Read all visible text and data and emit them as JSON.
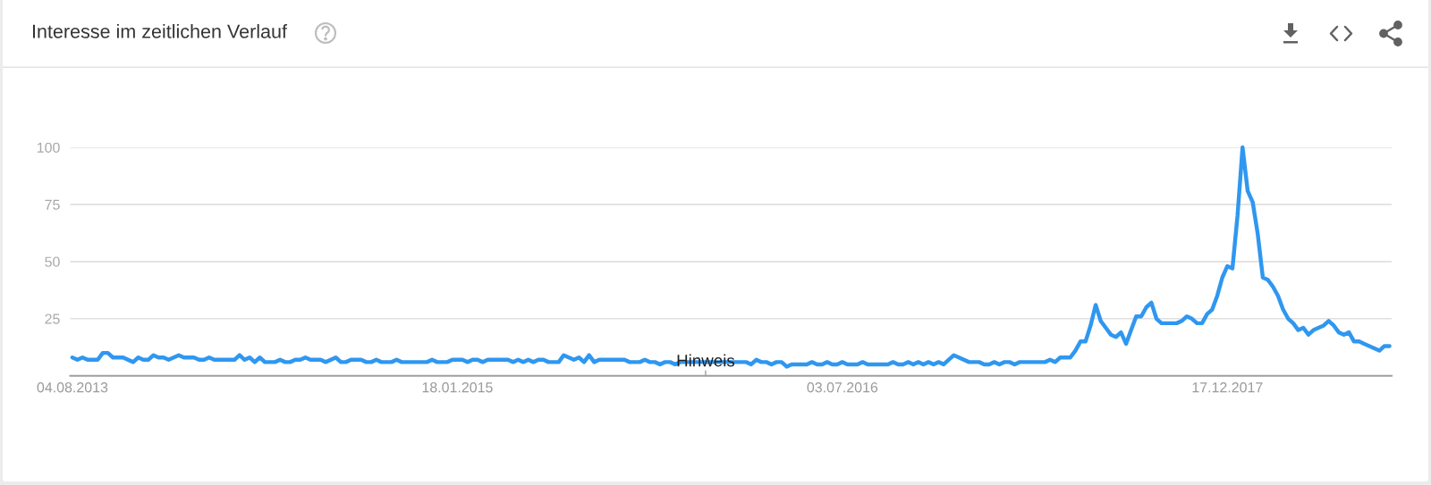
{
  "chart_data": {
    "type": "line",
    "title": "Interesse im zeitlichen Verlauf",
    "annotations": [
      {
        "text": "Hinweis",
        "x": "2015-12-27",
        "y": 6
      }
    ],
    "x": [
      "2013-08-04",
      "2013-08-11",
      "2013-08-18",
      "2013-08-25",
      "2013-09-08",
      "2013-09-15",
      "2013-09-22",
      "2013-09-29",
      "2013-10-13",
      "2013-10-27",
      "2013-11-03",
      "2013-11-10",
      "2013-11-17",
      "2013-11-24",
      "2013-12-01",
      "2013-12-08",
      "2013-12-15",
      "2013-12-29",
      "2014-01-05",
      "2014-01-19",
      "2014-01-26",
      "2014-02-02",
      "2014-02-09",
      "2014-02-16",
      "2014-03-16",
      "2014-03-23",
      "2014-03-30",
      "2014-04-06",
      "2014-04-13",
      "2014-04-20",
      "2014-04-27",
      "2014-05-11",
      "2014-05-18",
      "2014-05-25",
      "2014-06-01",
      "2014-06-08",
      "2014-06-15",
      "2014-06-22",
      "2014-06-29",
      "2014-07-13",
      "2014-07-20",
      "2014-08-03",
      "2014-08-10",
      "2014-08-17",
      "2014-08-24",
      "2014-09-07",
      "2014-09-14",
      "2014-09-21",
      "2014-09-28",
      "2014-10-05",
      "2014-10-19",
      "2014-10-26",
      "2014-11-02",
      "2014-12-07",
      "2014-12-14",
      "2014-12-21",
      "2015-01-04",
      "2015-01-11",
      "2015-01-25",
      "2015-02-01",
      "2015-02-08",
      "2015-02-15",
      "2015-02-22",
      "2015-03-01",
      "2015-03-29",
      "2015-04-05",
      "2015-04-12",
      "2015-04-19",
      "2015-04-26",
      "2015-05-03",
      "2015-05-10",
      "2015-05-17",
      "2015-05-24",
      "2015-06-07",
      "2015-06-14",
      "2015-06-21",
      "2015-06-28",
      "2015-07-05",
      "2015-07-12",
      "2015-07-19",
      "2015-07-26",
      "2015-08-02",
      "2015-09-06",
      "2015-09-13",
      "2015-09-27",
      "2015-10-04",
      "2015-10-11",
      "2015-10-18",
      "2015-10-25",
      "2015-11-01",
      "2015-11-08",
      "2015-11-15",
      "2015-11-22",
      "2015-12-20",
      "2016-01-17",
      "2016-02-14",
      "2016-02-21",
      "2016-02-28",
      "2016-03-06",
      "2016-03-13",
      "2016-03-20",
      "2016-03-27",
      "2016-04-03",
      "2016-04-10",
      "2016-04-17",
      "2016-04-24",
      "2016-05-15",
      "2016-05-22",
      "2016-05-29",
      "2016-06-05",
      "2016-06-12",
      "2016-06-19",
      "2016-06-26",
      "2016-07-03",
      "2016-07-10",
      "2016-07-24",
      "2016-07-31",
      "2016-08-07",
      "2016-09-04",
      "2016-09-11",
      "2016-09-18",
      "2016-09-25",
      "2016-10-02",
      "2016-10-09",
      "2016-10-16",
      "2016-10-23",
      "2016-10-30",
      "2016-11-06",
      "2016-11-13",
      "2016-11-20",
      "2016-12-04",
      "2016-12-11",
      "2016-12-25",
      "2017-01-08",
      "2017-01-15",
      "2017-01-22",
      "2017-01-29",
      "2017-02-05",
      "2017-02-12",
      "2017-02-19",
      "2017-02-26",
      "2017-03-05",
      "2017-04-09",
      "2017-04-16",
      "2017-04-23",
      "2017-04-30",
      "2017-05-14",
      "2017-05-21",
      "2017-05-28",
      "2017-06-04",
      "2017-06-11",
      "2017-06-18",
      "2017-06-25",
      "2017-07-02",
      "2017-07-09",
      "2017-07-16",
      "2017-07-23",
      "2017-07-30",
      "2017-08-06",
      "2017-08-13",
      "2017-08-20",
      "2017-08-27",
      "2017-09-03",
      "2017-09-10",
      "2017-09-17",
      "2017-10-08",
      "2017-10-15",
      "2017-10-22",
      "2017-10-29",
      "2017-11-05",
      "2017-11-12",
      "2017-11-19",
      "2017-11-26",
      "2017-12-03",
      "2017-12-10",
      "2017-12-17",
      "2017-12-24",
      "2017-12-31",
      "2018-01-07",
      "2018-01-14",
      "2018-01-21",
      "2018-01-28",
      "2018-02-04",
      "2018-02-11",
      "2018-02-18",
      "2018-02-25",
      "2018-03-04",
      "2018-03-11",
      "2018-03-18",
      "2018-03-25",
      "2018-04-01",
      "2018-04-08",
      "2018-04-15",
      "2018-04-22",
      "2018-04-29",
      "2018-05-06",
      "2018-05-13",
      "2018-05-20",
      "2018-05-27",
      "2018-06-03",
      "2018-06-10",
      "2018-06-17",
      "2018-07-15",
      "2018-07-22",
      "2018-07-29"
    ],
    "series": [
      {
        "color": "#2f97f0",
        "values": [
          8,
          7,
          8,
          7,
          7,
          10,
          10,
          8,
          8,
          6,
          8,
          7,
          7,
          9,
          8,
          8,
          7,
          9,
          8,
          8,
          7,
          7,
          8,
          7,
          7,
          9,
          7,
          8,
          6,
          8,
          6,
          6,
          7,
          6,
          6,
          7,
          7,
          8,
          7,
          7,
          6,
          8,
          6,
          6,
          7,
          7,
          6,
          6,
          7,
          6,
          6,
          7,
          6,
          6,
          7,
          6,
          6,
          7,
          7,
          6,
          7,
          7,
          6,
          7,
          7,
          6,
          7,
          6,
          7,
          6,
          7,
          7,
          6,
          6,
          9,
          8,
          7,
          8,
          6,
          9,
          6,
          7,
          7,
          6,
          6,
          7,
          6,
          6,
          5,
          6,
          6,
          5,
          6,
          6,
          6,
          6,
          6,
          5,
          7,
          6,
          6,
          5,
          6,
          6,
          4,
          5,
          5,
          6,
          5,
          5,
          6,
          5,
          5,
          6,
          5,
          5,
          6,
          5,
          5,
          6,
          5,
          5,
          6,
          5,
          6,
          5,
          6,
          5,
          6,
          5,
          9,
          8,
          6,
          6,
          5,
          5,
          6,
          5,
          6,
          6,
          5,
          6,
          6,
          7,
          6,
          8,
          8,
          11,
          15,
          15,
          22,
          31,
          24,
          21,
          18,
          17,
          19,
          14,
          20,
          26,
          26,
          30,
          32,
          25,
          23,
          23,
          24,
          26,
          25,
          23,
          23,
          27,
          29,
          35,
          43,
          48,
          47,
          70,
          100,
          81,
          76,
          62,
          43,
          42,
          39,
          35,
          29,
          25,
          23,
          20,
          21,
          18,
          20,
          21,
          22,
          24,
          22,
          19,
          18,
          19,
          15,
          15,
          11,
          13,
          13
        ]
      }
    ],
    "xlim": [
      "2013-08-01",
      "2018-08-01"
    ],
    "ylim": [
      0,
      100
    ],
    "xticks": [
      {
        "value": "2013-08-04",
        "label": "04.08.2013"
      },
      {
        "value": "2015-01-18",
        "label": "18.01.2015"
      },
      {
        "value": "2016-07-03",
        "label": "03.07.2016"
      },
      {
        "value": "2017-12-17",
        "label": "17.12.2017"
      }
    ],
    "yticks": [
      25,
      50,
      75,
      100
    ],
    "grid": "y"
  }
}
